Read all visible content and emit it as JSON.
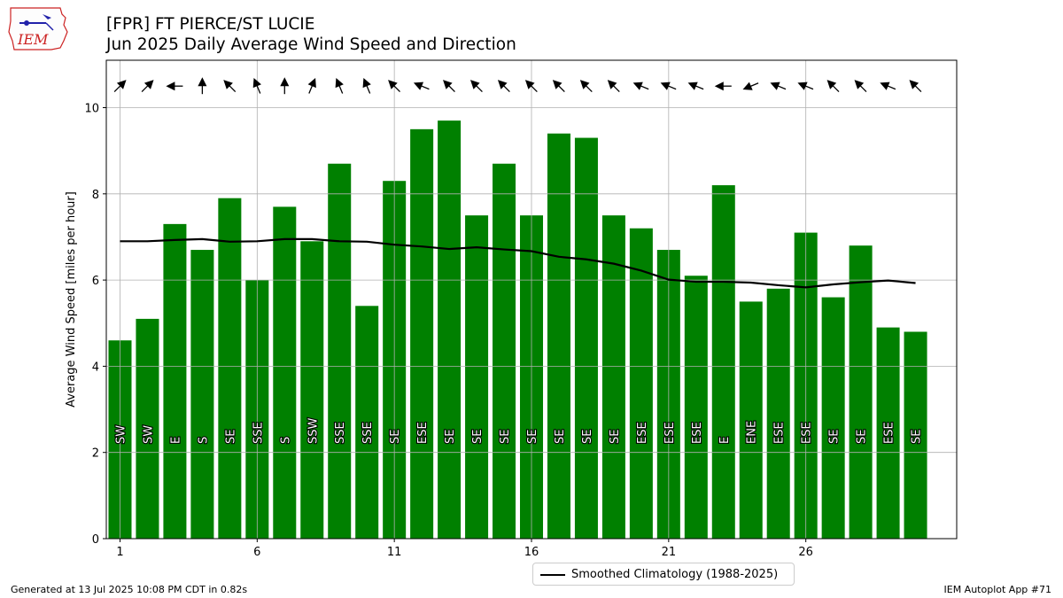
{
  "page": {
    "title_line1": "[FPR] FT PIERCE/ST LUCIE",
    "title_line2": "Jun 2025 Daily Average Wind Speed and Direction",
    "footer_left": "Generated at 13 Jul 2025 10:08 PM CDT in 0.82s",
    "footer_right": "IEM Autoplot App #71",
    "logo_text": "IEM"
  },
  "colors": {
    "bar": "#008000",
    "climo_line": "#000000",
    "grid": "#b0b0b0",
    "arrow": "#000000",
    "logo": "#cc2222"
  },
  "chart_data": {
    "type": "bar",
    "xlabel": "",
    "ylabel": "Average Wind Speed [miles per hour]",
    "ylim": [
      0,
      11.1
    ],
    "xlim": [
      0.5,
      31.5
    ],
    "xticks": [
      1,
      6,
      11,
      16,
      21,
      26
    ],
    "yticks": [
      0,
      2,
      4,
      6,
      8,
      10
    ],
    "grid": true,
    "legend_position": "bottom-center below plot",
    "days": [
      1,
      2,
      3,
      4,
      5,
      6,
      7,
      8,
      9,
      10,
      11,
      12,
      13,
      14,
      15,
      16,
      17,
      18,
      19,
      20,
      21,
      22,
      23,
      24,
      25,
      26,
      27,
      28,
      29,
      30
    ],
    "series": [
      {
        "name": "Average Wind Speed",
        "values": [
          4.6,
          5.1,
          7.3,
          6.7,
          7.9,
          6.0,
          7.7,
          6.9,
          8.7,
          5.4,
          8.3,
          9.5,
          9.7,
          7.5,
          8.7,
          7.5,
          9.4,
          9.3,
          7.5,
          7.2,
          6.7,
          6.1,
          8.2,
          5.5,
          5.8,
          7.1,
          5.6,
          6.8,
          4.9,
          4.8
        ]
      },
      {
        "name": "Smoothed Climatology (1988-2025)",
        "values": [
          6.9,
          6.9,
          6.93,
          6.95,
          6.89,
          6.9,
          6.95,
          6.95,
          6.9,
          6.89,
          6.82,
          6.78,
          6.72,
          6.76,
          6.71,
          6.67,
          6.54,
          6.48,
          6.38,
          6.22,
          6.01,
          5.96,
          5.96,
          5.94,
          5.88,
          5.83,
          5.9,
          5.95,
          5.99,
          5.93
        ]
      }
    ],
    "direction_labels": [
      "SW",
      "SW",
      "E",
      "S",
      "SE",
      "SSE",
      "S",
      "SSW",
      "SSE",
      "SSE",
      "SE",
      "ESE",
      "SE",
      "SE",
      "SE",
      "SE",
      "SE",
      "SE",
      "SE",
      "ESE",
      "ESE",
      "ESE",
      "E",
      "ENE",
      "ESE",
      "ESE",
      "SE",
      "SE",
      "ESE",
      "SE"
    ],
    "direction_degrees": [
      225,
      225,
      90,
      180,
      135,
      157.5,
      180,
      202.5,
      157.5,
      157.5,
      135,
      112.5,
      135,
      135,
      135,
      135,
      135,
      135,
      135,
      112.5,
      112.5,
      112.5,
      90,
      67.5,
      112.5,
      112.5,
      135,
      135,
      112.5,
      135
    ]
  }
}
